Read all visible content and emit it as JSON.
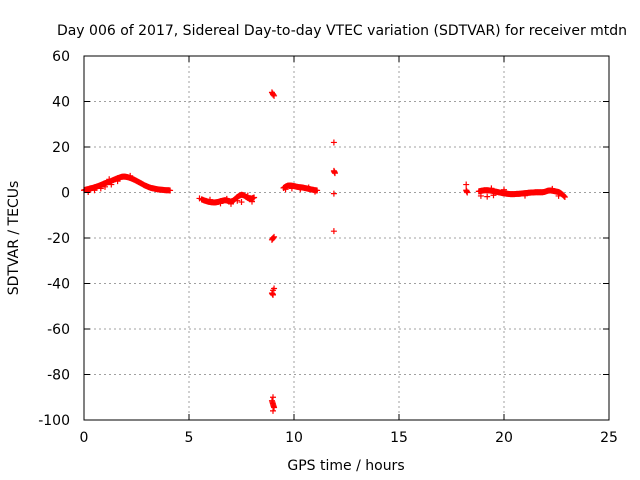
{
  "chart_data": {
    "type": "scatter",
    "title": "Day 006 of 2017, Sidereal Day-to-day VTEC variation (SDTVAR) for receiver mtdn",
    "xlabel": "GPS time / hours",
    "ylabel": "SDTVAR / TECUs",
    "xlim": [
      0,
      25
    ],
    "ylim": [
      -100,
      60
    ],
    "xticks": [
      0,
      5,
      10,
      15,
      20,
      25
    ],
    "yticks": [
      -100,
      -80,
      -60,
      -40,
      -20,
      0,
      20,
      40,
      60
    ],
    "grid": true,
    "marker": "+",
    "colors": {
      "series": "#ff0000",
      "axes": "#000000",
      "grid": "#a0a0a0"
    },
    "series": [
      {
        "name": "SDTVAR",
        "points": [
          [
            0.0,
            1.0
          ],
          [
            0.1,
            1.3
          ],
          [
            0.2,
            1.5
          ],
          [
            0.3,
            1.8
          ],
          [
            0.4,
            2.0
          ],
          [
            0.5,
            2.3
          ],
          [
            0.6,
            2.6
          ],
          [
            0.7,
            2.9
          ],
          [
            0.8,
            3.3
          ],
          [
            0.9,
            3.7
          ],
          [
            1.0,
            4.1
          ],
          [
            1.1,
            4.4
          ],
          [
            1.2,
            4.7
          ],
          [
            1.3,
            5.1
          ],
          [
            1.4,
            5.5
          ],
          [
            1.5,
            5.9
          ],
          [
            1.6,
            6.3
          ],
          [
            1.7,
            6.6
          ],
          [
            1.8,
            6.9
          ],
          [
            1.9,
            7.0
          ],
          [
            2.0,
            6.9
          ],
          [
            2.1,
            6.7
          ],
          [
            2.2,
            6.4
          ],
          [
            2.3,
            6.0
          ],
          [
            2.4,
            5.6
          ],
          [
            2.5,
            5.1
          ],
          [
            2.6,
            4.6
          ],
          [
            2.7,
            4.1
          ],
          [
            2.8,
            3.6
          ],
          [
            2.9,
            3.1
          ],
          [
            3.0,
            2.7
          ],
          [
            3.1,
            2.3
          ],
          [
            3.2,
            2.0
          ],
          [
            3.3,
            1.8
          ],
          [
            3.4,
            1.6
          ],
          [
            3.5,
            1.4
          ],
          [
            3.6,
            1.3
          ],
          [
            3.7,
            1.2
          ],
          [
            3.8,
            1.1
          ],
          [
            3.9,
            1.0
          ],
          [
            4.0,
            1.0
          ],
          [
            4.1,
            0.9
          ],
          [
            0.5,
            1.0
          ],
          [
            1.0,
            2.5
          ],
          [
            1.3,
            3.5
          ],
          [
            0.2,
            0.2
          ],
          [
            0.8,
            1.8
          ],
          [
            1.2,
            5.8
          ],
          [
            1.6,
            5.0
          ],
          [
            2.2,
            7.3
          ],
          [
            5.6,
            -3.0
          ],
          [
            5.7,
            -3.4
          ],
          [
            5.8,
            -3.7
          ],
          [
            5.9,
            -4.0
          ],
          [
            6.0,
            -4.2
          ],
          [
            6.1,
            -4.3
          ],
          [
            6.2,
            -4.4
          ],
          [
            6.3,
            -4.3
          ],
          [
            6.4,
            -4.1
          ],
          [
            6.5,
            -3.8
          ],
          [
            6.6,
            -3.6
          ],
          [
            6.7,
            -3.4
          ],
          [
            6.8,
            -3.5
          ],
          [
            6.9,
            -3.8
          ],
          [
            7.0,
            -4.0
          ],
          [
            7.1,
            -3.6
          ],
          [
            7.2,
            -2.8
          ],
          [
            7.3,
            -2.0
          ],
          [
            7.4,
            -1.4
          ],
          [
            7.5,
            -1.0
          ],
          [
            7.6,
            -1.2
          ],
          [
            7.7,
            -1.8
          ],
          [
            7.8,
            -2.4
          ],
          [
            7.9,
            -2.8
          ],
          [
            8.0,
            -2.6
          ],
          [
            8.1,
            -2.2
          ],
          [
            6.0,
            -3.2
          ],
          [
            6.5,
            -4.8
          ],
          [
            7.0,
            -5.0
          ],
          [
            7.5,
            -4.2
          ],
          [
            5.5,
            -2.6
          ],
          [
            6.8,
            -2.8
          ],
          [
            7.3,
            -3.6
          ],
          [
            7.8,
            -1.4
          ],
          [
            8.0,
            -4.0
          ],
          [
            9.0,
            43.0
          ],
          [
            8.95,
            44.0
          ],
          [
            9.05,
            42.5
          ],
          [
            9.0,
            -20.0
          ],
          [
            8.95,
            -20.8
          ],
          [
            9.05,
            -19.5
          ],
          [
            9.0,
            -43.0
          ],
          [
            8.95,
            -44.2
          ],
          [
            9.0,
            -45.0
          ],
          [
            9.05,
            -42.2
          ],
          [
            9.0,
            -90.0
          ],
          [
            8.95,
            -91.5
          ],
          [
            9.0,
            -93.0
          ],
          [
            9.05,
            -94.5
          ],
          [
            9.0,
            -96.0
          ],
          [
            9.5,
            2.0
          ],
          [
            9.6,
            2.6
          ],
          [
            9.7,
            3.0
          ],
          [
            9.8,
            3.1
          ],
          [
            9.9,
            3.0
          ],
          [
            10.0,
            2.8
          ],
          [
            10.1,
            2.6
          ],
          [
            10.2,
            2.4
          ],
          [
            10.3,
            2.3
          ],
          [
            10.4,
            2.2
          ],
          [
            10.5,
            2.0
          ],
          [
            10.6,
            1.8
          ],
          [
            10.7,
            1.6
          ],
          [
            10.8,
            1.4
          ],
          [
            10.9,
            1.2
          ],
          [
            11.0,
            1.0
          ],
          [
            11.1,
            0.9
          ],
          [
            9.6,
            1.4
          ],
          [
            9.9,
            1.8
          ],
          [
            10.3,
            1.5
          ],
          [
            10.7,
            2.2
          ],
          [
            11.0,
            0.4
          ],
          [
            11.9,
            22.0
          ],
          [
            11.9,
            9.5
          ],
          [
            11.95,
            8.5
          ],
          [
            11.9,
            -0.5
          ],
          [
            11.9,
            -17.0
          ],
          [
            18.2,
            3.5
          ],
          [
            18.2,
            1.0
          ],
          [
            18.25,
            0.0
          ],
          [
            18.8,
            0.5
          ],
          [
            18.9,
            0.7
          ],
          [
            19.0,
            0.9
          ],
          [
            19.1,
            1.0
          ],
          [
            19.2,
            1.0
          ],
          [
            19.3,
            0.9
          ],
          [
            19.4,
            0.8
          ],
          [
            19.5,
            0.6
          ],
          [
            19.6,
            0.4
          ],
          [
            19.7,
            0.2
          ],
          [
            19.8,
            0.0
          ],
          [
            19.9,
            -0.2
          ],
          [
            20.0,
            -0.4
          ],
          [
            20.1,
            -0.5
          ],
          [
            20.2,
            -0.6
          ],
          [
            20.3,
            -0.7
          ],
          [
            20.4,
            -0.7
          ],
          [
            20.5,
            -0.7
          ],
          [
            20.6,
            -0.6
          ],
          [
            20.7,
            -0.6
          ],
          [
            20.8,
            -0.5
          ],
          [
            20.9,
            -0.4
          ],
          [
            21.0,
            -0.3
          ],
          [
            21.1,
            -0.2
          ],
          [
            21.2,
            -0.1
          ],
          [
            21.3,
            0.0
          ],
          [
            21.4,
            0.0
          ],
          [
            21.5,
            0.1
          ],
          [
            21.6,
            0.1
          ],
          [
            21.7,
            0.1
          ],
          [
            21.8,
            0.1
          ],
          [
            21.9,
            0.2
          ],
          [
            22.0,
            0.5
          ],
          [
            22.1,
            0.8
          ],
          [
            22.2,
            0.9
          ],
          [
            22.3,
            0.8
          ],
          [
            22.4,
            0.6
          ],
          [
            22.5,
            0.4
          ],
          [
            22.6,
            0.2
          ],
          [
            22.7,
            -0.3
          ],
          [
            22.8,
            -1.0
          ],
          [
            22.9,
            -2.0
          ],
          [
            18.9,
            -1.5
          ],
          [
            19.2,
            -1.8
          ],
          [
            19.5,
            -1.2
          ],
          [
            19.4,
            1.8
          ],
          [
            20.0,
            1.2
          ],
          [
            21.0,
            -1.4
          ],
          [
            22.3,
            1.6
          ],
          [
            22.6,
            -1.5
          ]
        ]
      }
    ]
  }
}
